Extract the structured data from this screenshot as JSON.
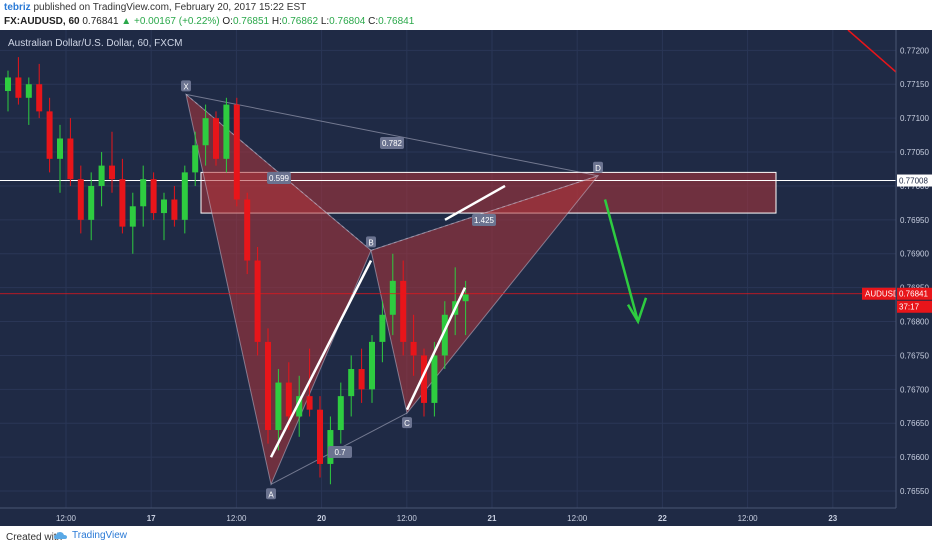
{
  "header": {
    "author": "tebriz",
    "published_text": "published on TradingView.com, February 20, 2017 15:22 EST",
    "symbol_line": "FX:AUDUSD, 60",
    "last": "0.76841",
    "change": "+0.00167 (+0.22%)",
    "open_label": "O:",
    "open": "0.76851",
    "high_label": "H:",
    "high": "0.76862",
    "low_label": "L:",
    "low": "0.76804",
    "close_label": "C:",
    "close": "0.76841"
  },
  "footer": {
    "created_with": "Created with",
    "brand": "TradingView"
  },
  "colors": {
    "bg": "#1f2a45",
    "up": "#2ecc40",
    "down": "#e8151a",
    "pattern": "#b0343a",
    "arrow": "#2ecc40",
    "price_line": "#e8151a"
  },
  "chart_data": {
    "type": "candlestick",
    "title": "Australian Dollar/U.S. Dollar, 60, FXCM",
    "ylim": [
      0.76525,
      0.7723
    ],
    "y_ticks": [
      "0.77200",
      "0.77150",
      "0.77100",
      "0.77050",
      "0.77000",
      "0.76950",
      "0.76900",
      "0.76850",
      "0.76800",
      "0.76750",
      "0.76700",
      "0.76650",
      "0.76600",
      "0.76550"
    ],
    "x_ticks": [
      "12:00",
      "17",
      "12:00",
      "20",
      "12:00",
      "21",
      "12:00",
      "22",
      "12:00",
      "23"
    ],
    "price_labels": {
      "current_symbol": "AUDUSD",
      "current_price": "0.76841",
      "countdown": "37:17",
      "line_price": "0.77008",
      "partial_price": "0.76850"
    },
    "ohlc_ranges": {
      "open": 0.77125,
      "high_x": 0.77135,
      "point_A": 0.7656,
      "point_B": 0.76905,
      "point_C": 0.76665,
      "point_D": 0.77015
    },
    "pattern_labels": {
      "X": "X",
      "A": "A",
      "B": "B",
      "C": "C",
      "D": "D"
    },
    "ratios": {
      "xb": "0.599",
      "xd": "0.782",
      "bd": "1.425",
      "ac": "0.7"
    },
    "zone": {
      "top": 0.7702,
      "bottom": 0.7696
    },
    "horizontal_line": 0.77008,
    "candles": [
      [
        0.7714,
        0.7717,
        0.7711,
        0.7716
      ],
      [
        0.7716,
        0.7719,
        0.7712,
        0.7713
      ],
      [
        0.7713,
        0.7716,
        0.7709,
        0.7715
      ],
      [
        0.7715,
        0.7718,
        0.771,
        0.7711
      ],
      [
        0.7711,
        0.7713,
        0.7702,
        0.7704
      ],
      [
        0.7704,
        0.7709,
        0.7699,
        0.7707
      ],
      [
        0.7707,
        0.771,
        0.77,
        0.7701
      ],
      [
        0.7701,
        0.7703,
        0.7693,
        0.7695
      ],
      [
        0.7695,
        0.7702,
        0.7692,
        0.77
      ],
      [
        0.77,
        0.7705,
        0.7697,
        0.7703
      ],
      [
        0.7703,
        0.7708,
        0.7699,
        0.7701
      ],
      [
        0.7701,
        0.7704,
        0.7693,
        0.7694
      ],
      [
        0.7694,
        0.7699,
        0.769,
        0.7697
      ],
      [
        0.7697,
        0.7703,
        0.7694,
        0.7701
      ],
      [
        0.7701,
        0.7702,
        0.7695,
        0.7696
      ],
      [
        0.7696,
        0.7699,
        0.7692,
        0.7698
      ],
      [
        0.7698,
        0.77,
        0.7694,
        0.7695
      ],
      [
        0.7695,
        0.7703,
        0.7693,
        0.7702
      ],
      [
        0.7702,
        0.7708,
        0.77,
        0.7706
      ],
      [
        0.7706,
        0.7712,
        0.7703,
        0.771
      ],
      [
        0.771,
        0.7711,
        0.7703,
        0.7704
      ],
      [
        0.7704,
        0.7713,
        0.7702,
        0.7712
      ],
      [
        0.7712,
        0.7713,
        0.7697,
        0.7698
      ],
      [
        0.7698,
        0.7699,
        0.7687,
        0.7689
      ],
      [
        0.7689,
        0.7691,
        0.7675,
        0.7677
      ],
      [
        0.7677,
        0.7679,
        0.7662,
        0.7664
      ],
      [
        0.7664,
        0.7673,
        0.7661,
        0.7671
      ],
      [
        0.7671,
        0.7674,
        0.7664,
        0.7666
      ],
      [
        0.7666,
        0.7672,
        0.7663,
        0.7669
      ],
      [
        0.7669,
        0.7676,
        0.7666,
        0.7667
      ],
      [
        0.7667,
        0.7669,
        0.7657,
        0.7659
      ],
      [
        0.7659,
        0.7666,
        0.7656,
        0.7664
      ],
      [
        0.7664,
        0.7671,
        0.7662,
        0.7669
      ],
      [
        0.7669,
        0.7675,
        0.7666,
        0.7673
      ],
      [
        0.7673,
        0.7676,
        0.7668,
        0.767
      ],
      [
        0.767,
        0.7678,
        0.7668,
        0.7677
      ],
      [
        0.7677,
        0.7683,
        0.7674,
        0.7681
      ],
      [
        0.7681,
        0.769,
        0.7678,
        0.7686
      ],
      [
        0.7686,
        0.7689,
        0.7675,
        0.7677
      ],
      [
        0.7677,
        0.7681,
        0.7672,
        0.7675
      ],
      [
        0.7675,
        0.7676,
        0.7666,
        0.7668
      ],
      [
        0.7668,
        0.7677,
        0.7666,
        0.7675
      ],
      [
        0.7675,
        0.7683,
        0.7673,
        0.7681
      ],
      [
        0.7681,
        0.7688,
        0.7678,
        0.7683
      ],
      [
        0.7683,
        0.7686,
        0.7678,
        0.7684
      ]
    ]
  }
}
